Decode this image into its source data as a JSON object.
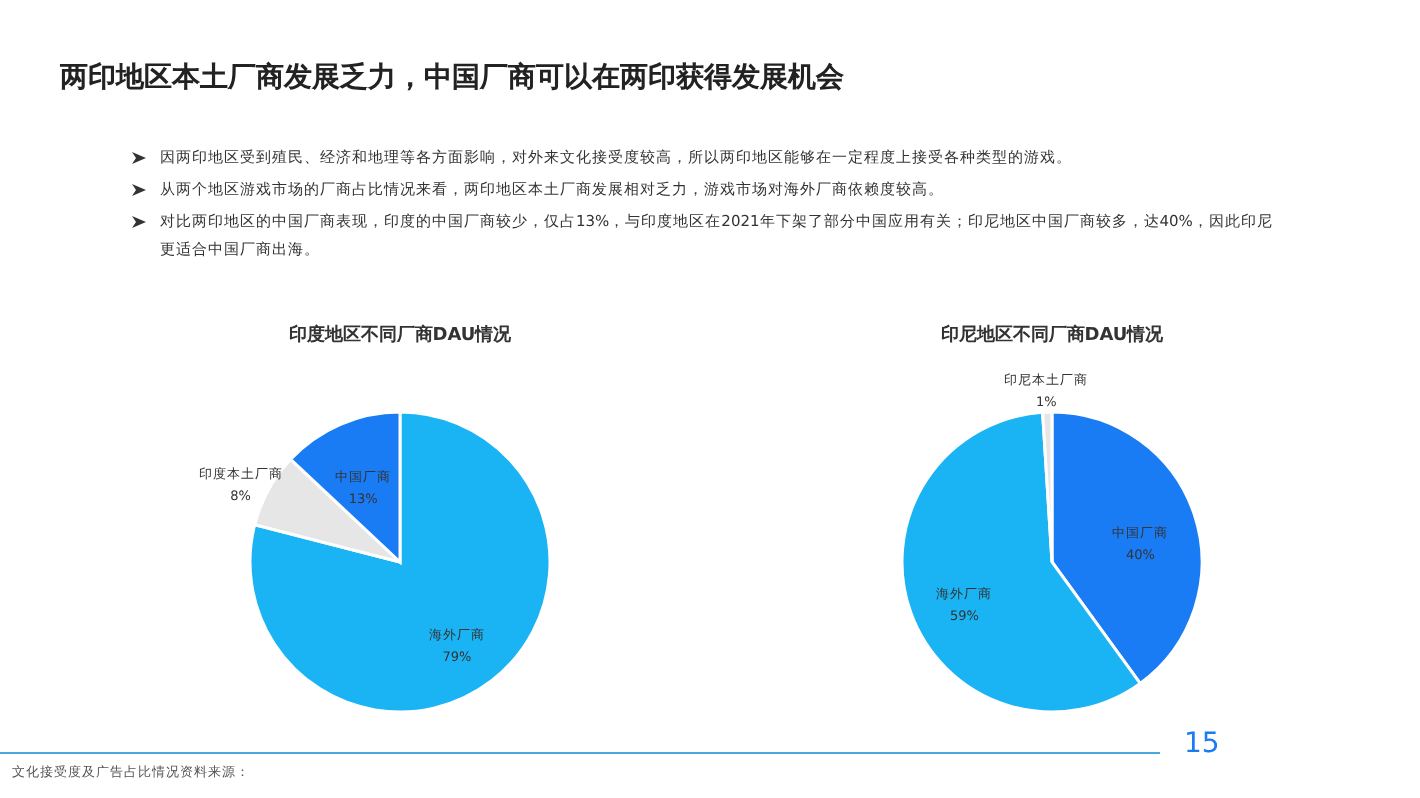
{
  "chart_data": [
    {
      "type": "other",
      "title": "两印地区本土厂商发展乏力，中国厂商可以在两印获得发展机会",
      "annotations": [
        "因两印地区受到殖民、经济和地理等各方面影响，对外来文化接受度较高，所以两印地区能够在一定程度上接受各种类型的游戏。",
        "从两个地区游戏市场的厂商占比情况来看，两印地区本土厂商发展相对乏力，游戏市场对海外厂商依赖度较高。",
        "对比两印地区的中国厂商表现，印度的中国厂商较少，仅占13%，与印度地区在2021年下架了部分中国应用有关；印尼地区中国厂商较多，达40%，因此印尼更适合中国厂商出海。",
        "文化接受度及广告占比情况资料来源：",
        "15"
      ]
    },
    {
      "type": "pie",
      "title": "印度地区不同厂商DAU情况",
      "categories": [
        "海外厂商",
        "印度本土厂商",
        "中国厂商"
      ],
      "values": [
        79,
        8,
        13
      ],
      "colors": [
        "#1ab4f5",
        "#e6e6e6",
        "#1a7cf5"
      ],
      "value_labels": [
        "79%",
        "8%",
        "13%"
      ]
    },
    {
      "type": "pie",
      "title": "印尼地区不同厂商DAU情况",
      "categories": [
        "中国厂商",
        "海外厂商",
        "印尼本土厂商"
      ],
      "values": [
        40,
        59,
        1
      ],
      "colors": [
        "#1a7cf5",
        "#1ab4f5",
        "#e6e6e6"
      ],
      "value_labels": [
        "40%",
        "59%",
        "1%"
      ]
    }
  ]
}
